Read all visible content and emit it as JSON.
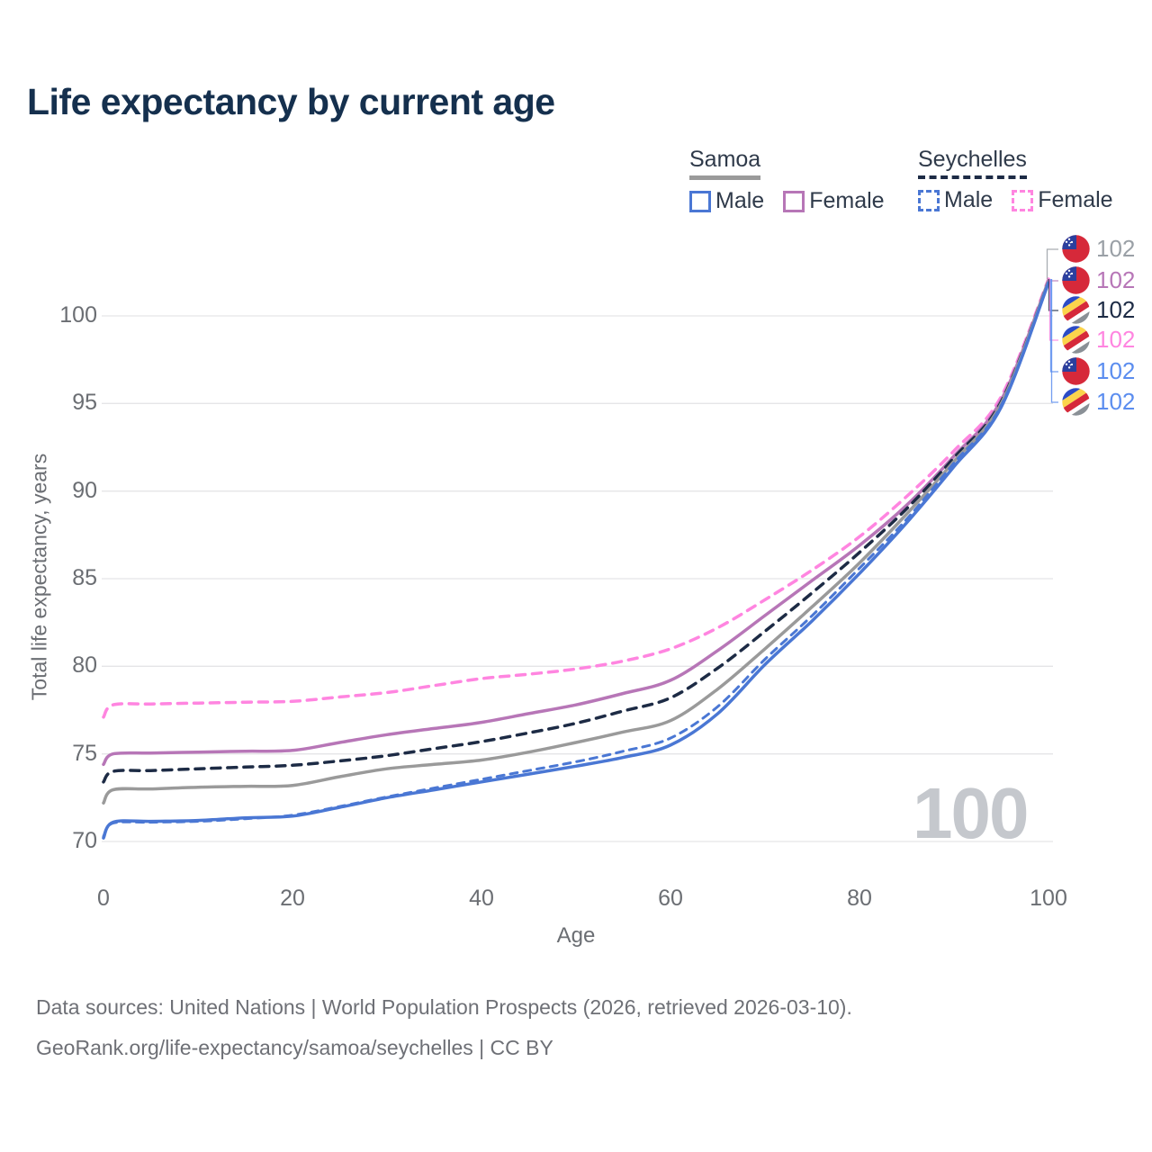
{
  "title": "Life expectancy by current age",
  "watermark": "100",
  "legend": {
    "groups": [
      {
        "label": "Samoa",
        "style": "solid",
        "underline_color": "#9a9a9a"
      },
      {
        "label": "Seychelles",
        "style": "dashed",
        "underline_color": "#1d2b45"
      }
    ],
    "items": [
      {
        "label": "Male",
        "group": "Samoa",
        "color": "#4a77d4",
        "style": "solid"
      },
      {
        "label": "Female",
        "group": "Samoa",
        "color": "#b776b7",
        "style": "solid"
      },
      {
        "label": "Male",
        "group": "Seychelles",
        "color": "#4a77d4",
        "style": "dashed"
      },
      {
        "label": "Female",
        "group": "Seychelles",
        "color": "#ff85e0",
        "style": "dashed"
      }
    ]
  },
  "chart_data": {
    "type": "line",
    "title": "Life expectancy by current age",
    "xlabel": "Age",
    "ylabel": "Total life expectancy, years",
    "xlim": [
      0,
      100
    ],
    "ylim": [
      69.5,
      103
    ],
    "xticks": [
      0,
      20,
      40,
      60,
      80,
      100
    ],
    "yticks": [
      70,
      75,
      80,
      85,
      90,
      95,
      100
    ],
    "grid": "horizontal",
    "legend_position": "top-right",
    "x": [
      0,
      1,
      5,
      10,
      15,
      20,
      25,
      30,
      35,
      40,
      45,
      50,
      55,
      60,
      65,
      70,
      75,
      80,
      85,
      90,
      95,
      100
    ],
    "series": [
      {
        "name": "Seychelles Female",
        "country": "Seychelles",
        "sex": "Female",
        "color": "#ff85e0",
        "dash": "10 8",
        "width": 3.5,
        "values": [
          77.1,
          77.8,
          77.85,
          77.9,
          77.95,
          78.0,
          78.25,
          78.5,
          78.9,
          79.3,
          79.55,
          79.85,
          80.3,
          81.0,
          82.2,
          83.8,
          85.5,
          87.4,
          89.7,
          92.3,
          95.4,
          102.1
        ]
      },
      {
        "name": "Samoa Female",
        "country": "Samoa",
        "sex": "Female",
        "color": "#b776b7",
        "dash": null,
        "width": 3.5,
        "values": [
          74.4,
          75.0,
          75.05,
          75.1,
          75.15,
          75.2,
          75.65,
          76.1,
          76.45,
          76.8,
          77.3,
          77.8,
          78.45,
          79.2,
          80.9,
          82.9,
          84.9,
          86.9,
          89.2,
          92.0,
          95.2,
          102.0
        ]
      },
      {
        "name": "Seychelles Both sexes",
        "country": "Seychelles",
        "sex": "Both sexes",
        "color": "#1d2b45",
        "dash": "10 8",
        "width": 3.5,
        "values": [
          73.4,
          74.0,
          74.05,
          74.15,
          74.25,
          74.35,
          74.6,
          74.9,
          75.3,
          75.7,
          76.2,
          76.75,
          77.45,
          78.2,
          79.9,
          82.0,
          84.2,
          86.5,
          89.0,
          91.9,
          95.1,
          102.0
        ]
      },
      {
        "name": "Samoa Both sexes",
        "country": "Samoa",
        "sex": "Both sexes",
        "color": "#9a9a9a",
        "dash": null,
        "width": 3.5,
        "values": [
          72.2,
          72.95,
          73.0,
          73.1,
          73.15,
          73.2,
          73.7,
          74.15,
          74.4,
          74.65,
          75.1,
          75.65,
          76.25,
          76.9,
          78.7,
          81.0,
          83.4,
          85.9,
          88.7,
          91.7,
          95.0,
          102.0
        ]
      },
      {
        "name": "Samoa Male",
        "country": "Samoa",
        "sex": "Male",
        "color": "#4a77d4",
        "dash": null,
        "width": 3.5,
        "values": [
          70.2,
          71.1,
          71.15,
          71.2,
          71.35,
          71.45,
          71.95,
          72.5,
          72.95,
          73.4,
          73.85,
          74.3,
          74.8,
          75.5,
          77.3,
          80.1,
          82.6,
          85.3,
          88.2,
          91.4,
          94.8,
          101.9
        ]
      },
      {
        "name": "Seychelles Male",
        "country": "Seychelles",
        "sex": "Male",
        "color": "#4a77d4",
        "dash": "8 7",
        "width": 3.0,
        "values": [
          70.3,
          71.05,
          71.1,
          71.15,
          71.3,
          71.5,
          72.0,
          72.55,
          73.05,
          73.55,
          74.05,
          74.55,
          75.15,
          75.9,
          77.7,
          80.4,
          82.9,
          85.6,
          88.4,
          91.6,
          94.9,
          101.9
        ]
      }
    ]
  },
  "end_labels": [
    {
      "series": "Samoa Both sexes",
      "flag": "samoa",
      "value": "102",
      "color": "#9aa0a6"
    },
    {
      "series": "Samoa Female",
      "flag": "samoa",
      "value": "102",
      "color": "#b776b7"
    },
    {
      "series": "Seychelles Both sexes",
      "flag": "seychelles",
      "value": "102",
      "color": "#1d2b45"
    },
    {
      "series": "Seychelles Female",
      "flag": "seychelles",
      "value": "102",
      "color": "#ff85e0"
    },
    {
      "series": "Samoa Male",
      "flag": "samoa",
      "value": "102",
      "color": "#5b8def"
    },
    {
      "series": "Seychelles Male",
      "flag": "seychelles",
      "value": "102",
      "color": "#5b8def"
    }
  ],
  "footer": {
    "line1": "Data sources: United Nations | World Population Prospects (2026, retrieved 2026-03-10).",
    "line2": "GeoRank.org/life-expectancy/samoa/seychelles | CC BY"
  }
}
